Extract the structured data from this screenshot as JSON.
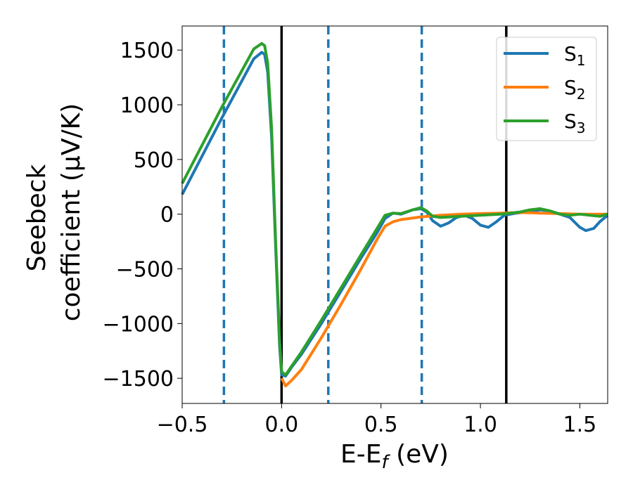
{
  "chart_data": {
    "type": "line",
    "xlabel": "E-E",
    "xlabel_sub": "f",
    "xlabel_unit": " (eV)",
    "ylabel_line1": "Seebeck",
    "ylabel_line2": "coefficient  (μV/K)",
    "xlim": [
      -0.5,
      1.64
    ],
    "ylim": [
      -1730,
      1720
    ],
    "x_ticks": [
      -0.5,
      0.0,
      0.5,
      1.0,
      1.5
    ],
    "x_tick_labels": [
      "−0.5",
      "0.0",
      "0.5",
      "1.0",
      "1.5"
    ],
    "y_ticks": [
      -1500,
      -1000,
      -500,
      0,
      500,
      1000,
      1500
    ],
    "y_tick_labels": [
      "−1500",
      "−1000",
      "−500",
      "0",
      "500",
      "1000",
      "1500"
    ],
    "grid": false,
    "legend_position": "top-right",
    "series": [
      {
        "name": "S",
        "sub": "1",
        "color": "#1f77b4",
        "points": [
          [
            -0.5,
            180
          ],
          [
            -0.3,
            880
          ],
          [
            -0.14,
            1420
          ],
          [
            -0.1,
            1480
          ],
          [
            -0.085,
            1460
          ],
          [
            -0.07,
            1300
          ],
          [
            -0.05,
            700
          ],
          [
            -0.03,
            -300
          ],
          [
            -0.01,
            -1200
          ],
          [
            0.0,
            -1470
          ],
          [
            0.02,
            -1480
          ],
          [
            0.05,
            -1400
          ],
          [
            0.1,
            -1280
          ],
          [
            0.2,
            -1000
          ],
          [
            0.3,
            -700
          ],
          [
            0.4,
            -400
          ],
          [
            0.48,
            -170
          ],
          [
            0.52,
            -40
          ],
          [
            0.56,
            10
          ],
          [
            0.6,
            0
          ],
          [
            0.66,
            40
          ],
          [
            0.7,
            50
          ],
          [
            0.73,
            20
          ],
          [
            0.76,
            -60
          ],
          [
            0.8,
            -110
          ],
          [
            0.84,
            -80
          ],
          [
            0.88,
            -30
          ],
          [
            0.92,
            -10
          ],
          [
            0.96,
            -40
          ],
          [
            1.0,
            -100
          ],
          [
            1.04,
            -120
          ],
          [
            1.08,
            -70
          ],
          [
            1.12,
            -10
          ],
          [
            1.18,
            10
          ],
          [
            1.24,
            20
          ],
          [
            1.3,
            40
          ],
          [
            1.35,
            30
          ],
          [
            1.4,
            0
          ],
          [
            1.45,
            -30
          ],
          [
            1.5,
            -120
          ],
          [
            1.53,
            -150
          ],
          [
            1.57,
            -130
          ],
          [
            1.6,
            -70
          ],
          [
            1.64,
            -10
          ]
        ]
      },
      {
        "name": "S",
        "sub": "2",
        "color": "#ff7f0e",
        "points": [
          [
            0.0,
            -1500
          ],
          [
            0.02,
            -1570
          ],
          [
            0.05,
            -1520
          ],
          [
            0.1,
            -1420
          ],
          [
            0.2,
            -1130
          ],
          [
            0.3,
            -820
          ],
          [
            0.4,
            -500
          ],
          [
            0.48,
            -230
          ],
          [
            0.52,
            -110
          ],
          [
            0.56,
            -70
          ],
          [
            0.6,
            -50
          ],
          [
            0.7,
            -25
          ],
          [
            0.8,
            -10
          ],
          [
            0.9,
            0
          ],
          [
            1.0,
            5
          ],
          [
            1.1,
            10
          ],
          [
            1.2,
            15
          ],
          [
            1.3,
            10
          ],
          [
            1.4,
            5
          ],
          [
            1.5,
            0
          ],
          [
            1.64,
            0
          ]
        ]
      },
      {
        "name": "S",
        "sub": "3",
        "color": "#2ca02c",
        "points": [
          [
            -0.5,
            280
          ],
          [
            -0.3,
            980
          ],
          [
            -0.14,
            1510
          ],
          [
            -0.1,
            1560
          ],
          [
            -0.085,
            1540
          ],
          [
            -0.07,
            1380
          ],
          [
            -0.05,
            780
          ],
          [
            -0.03,
            -250
          ],
          [
            -0.01,
            -1150
          ],
          [
            0.0,
            -1440
          ],
          [
            0.02,
            -1470
          ],
          [
            0.05,
            -1390
          ],
          [
            0.1,
            -1260
          ],
          [
            0.2,
            -970
          ],
          [
            0.3,
            -670
          ],
          [
            0.4,
            -370
          ],
          [
            0.48,
            -130
          ],
          [
            0.52,
            -10
          ],
          [
            0.56,
            10
          ],
          [
            0.6,
            5
          ],
          [
            0.66,
            40
          ],
          [
            0.7,
            60
          ],
          [
            0.73,
            30
          ],
          [
            0.76,
            -20
          ],
          [
            0.8,
            -30
          ],
          [
            0.9,
            -20
          ],
          [
            1.0,
            -10
          ],
          [
            1.1,
            0
          ],
          [
            1.2,
            20
          ],
          [
            1.25,
            40
          ],
          [
            1.3,
            50
          ],
          [
            1.35,
            30
          ],
          [
            1.4,
            0
          ],
          [
            1.45,
            -10
          ],
          [
            1.5,
            0
          ],
          [
            1.55,
            -10
          ],
          [
            1.6,
            -20
          ],
          [
            1.64,
            0
          ]
        ]
      }
    ],
    "vlines_solid": [
      0.0,
      1.13
    ],
    "vlines_dashed": [
      -0.29,
      0.235,
      0.705
    ],
    "vline_solid_color": "#000000",
    "vline_dashed_color": "#1f77b4"
  }
}
